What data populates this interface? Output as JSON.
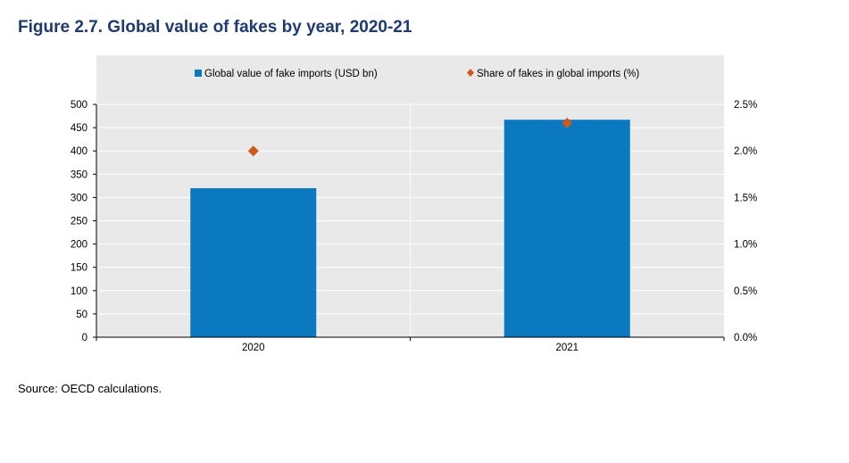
{
  "figure": {
    "title": "Figure 2.7. Global value of fakes by year, 2020-21",
    "source": "Source: OECD calculations."
  },
  "colors": {
    "bar": "#0a79c0",
    "marker": "#cc5a1e",
    "plot_bg": "#e9e9e9",
    "title": "#1f3a6e",
    "gridline": "#ffffff"
  },
  "chart_data": {
    "type": "bar",
    "categories": [
      "2020",
      "2021"
    ],
    "series": [
      {
        "name": "Global value of fake imports (USD bn)",
        "type": "bar",
        "axis": "left",
        "values": [
          320,
          467
        ]
      },
      {
        "name": "Share of fakes in global imports (%)",
        "type": "scatter",
        "marker": "diamond",
        "axis": "right",
        "values": [
          2.0,
          2.3
        ]
      }
    ],
    "y_left": {
      "ylim": [
        0,
        500
      ],
      "ticks": [
        0,
        50,
        100,
        150,
        200,
        250,
        300,
        350,
        400,
        450,
        500
      ],
      "tick_labels": [
        "0",
        "50",
        "100",
        "150",
        "200",
        "250",
        "300",
        "350",
        "400",
        "450",
        "500"
      ]
    },
    "y_right": {
      "ylim": [
        0,
        2.5
      ],
      "ticks": [
        0,
        0.5,
        1.0,
        1.5,
        2.0,
        2.5
      ],
      "tick_labels": [
        "0.0%",
        "0.5%",
        "1.0%",
        "1.5%",
        "2.0%",
        "2.5%"
      ]
    },
    "legend_position": "top",
    "grid": "horizontal"
  }
}
